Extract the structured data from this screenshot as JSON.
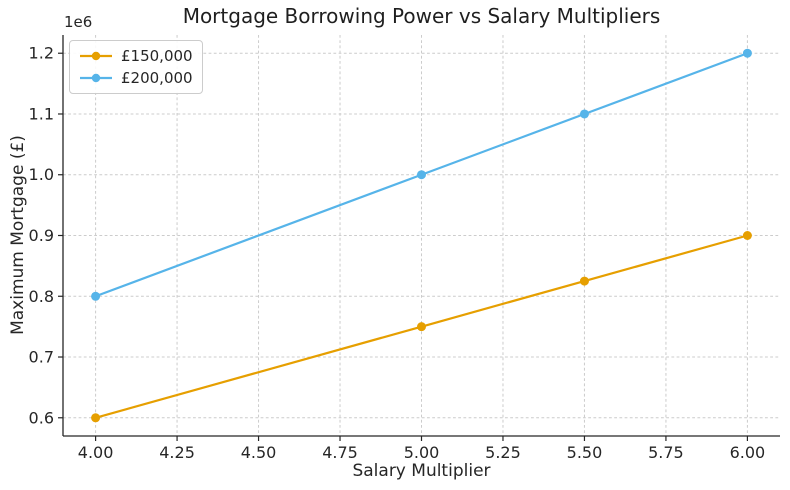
{
  "figure": {
    "title": "Mortgage Borrowing Power vs Salary Multipliers",
    "offset_text": "1e6"
  },
  "chart_data": {
    "type": "line",
    "title": "Mortgage Borrowing Power vs Salary Multipliers",
    "xlabel": "Salary Multiplier",
    "ylabel": "Maximum Mortgage (£)",
    "offset_text": "1e6",
    "x": [
      4.0,
      5.0,
      5.5,
      6.0
    ],
    "series": [
      {
        "name": "£150,000",
        "color": "#E69F00",
        "values": [
          600000,
          750000,
          825000,
          900000
        ]
      },
      {
        "name": "£200,000",
        "color": "#56B4E9",
        "values": [
          800000,
          1000000,
          1100000,
          1200000
        ]
      }
    ],
    "xlim": [
      3.9,
      6.1
    ],
    "ylim": [
      570000,
      1230000
    ],
    "x_ticks": [
      4.0,
      4.25,
      4.5,
      4.75,
      5.0,
      5.25,
      5.5,
      5.75,
      6.0
    ],
    "x_tick_labels": [
      "4.00",
      "4.25",
      "4.50",
      "4.75",
      "5.00",
      "5.25",
      "5.50",
      "5.75",
      "6.00"
    ],
    "y_ticks": [
      600000,
      700000,
      800000,
      900000,
      1000000,
      1100000,
      1200000
    ],
    "y_tick_labels": [
      "0.6",
      "0.7",
      "0.8",
      "0.9",
      "1.0",
      "1.1",
      "1.2"
    ],
    "grid": true,
    "grid_style": "dashed",
    "legend_position": "upper left",
    "marker": "circle"
  },
  "colors": {
    "grid": "#cccccc",
    "spine": "#262626",
    "tick": "#262626",
    "text": "#262626",
    "background": "#ffffff",
    "legend_border": "#cccccc",
    "series_orange": "#E69F00",
    "series_blue": "#56B4E9"
  }
}
